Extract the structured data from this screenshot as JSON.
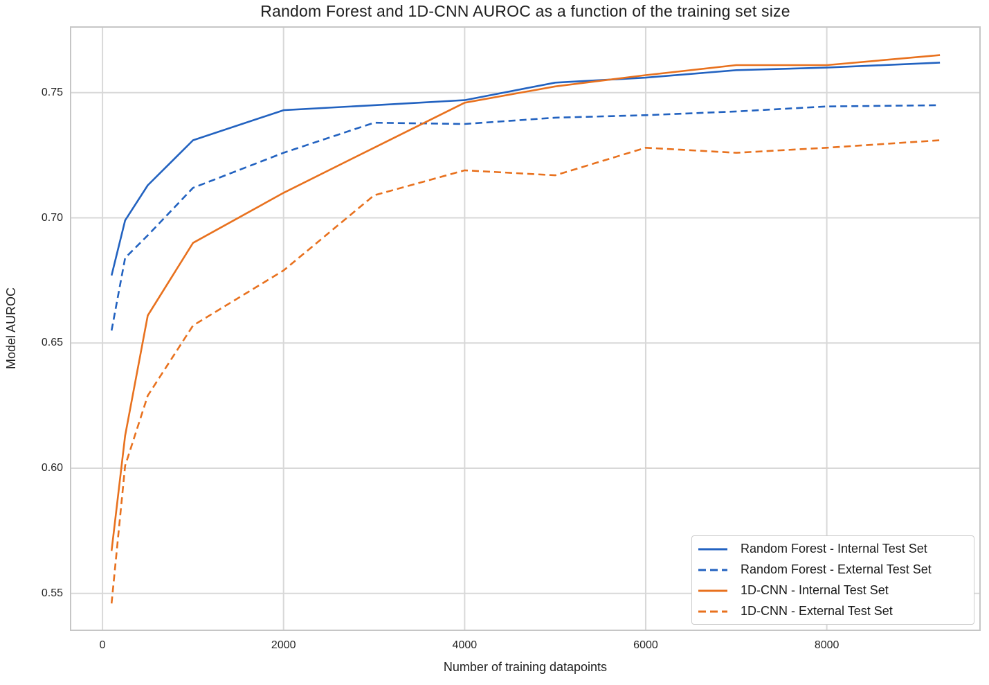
{
  "chart_data": {
    "type": "line",
    "title": "Random Forest and 1D-CNN AUROC as a function of the training set size",
    "xlabel": "Number of training datapoints",
    "ylabel": "Model AUROC",
    "x": [
      100,
      250,
      500,
      1000,
      2000,
      3000,
      4000,
      5000,
      6000,
      7000,
      8000,
      9250
    ],
    "series": [
      {
        "name": "Random Forest - Internal Test Set",
        "color": "#2262c0",
        "style": "solid",
        "values": [
          0.677,
          0.699,
          0.713,
          0.731,
          0.743,
          0.745,
          0.747,
          0.754,
          0.756,
          0.759,
          0.76,
          0.762
        ]
      },
      {
        "name": "Random Forest - External Test Set",
        "color": "#2262c0",
        "style": "dashed",
        "values": [
          0.655,
          0.684,
          0.693,
          0.712,
          0.726,
          0.738,
          0.7375,
          0.74,
          0.741,
          0.7425,
          0.7445,
          0.745
        ]
      },
      {
        "name": "1D-CNN - Internal Test Set",
        "color": "#e8711e",
        "style": "solid",
        "values": [
          0.567,
          0.613,
          0.661,
          0.69,
          0.71,
          0.728,
          0.746,
          0.7525,
          0.757,
          0.761,
          0.761,
          0.765
        ]
      },
      {
        "name": "1D-CNN - External Test Set",
        "color": "#e8711e",
        "style": "dashed",
        "values": [
          0.546,
          0.601,
          0.629,
          0.657,
          0.679,
          0.709,
          0.719,
          0.717,
          0.728,
          0.726,
          0.728,
          0.731
        ]
      }
    ],
    "xlim": [
      -360,
      9700
    ],
    "ylim": [
      0.535,
      0.7765
    ],
    "xticks": [
      0,
      2000,
      4000,
      6000,
      8000
    ],
    "xtick_labels": [
      "0",
      "2000",
      "4000",
      "6000",
      "8000"
    ],
    "yticks": [
      0.55,
      0.6,
      0.65,
      0.7,
      0.75
    ],
    "ytick_labels": [
      "0.55",
      "0.60",
      "0.65",
      "0.70",
      "0.75"
    ],
    "grid": true,
    "legend_position": "lower right",
    "colors": {
      "grid": "#d8d8d8",
      "border": "#c6c6c6",
      "background": "#ffffff",
      "text": "#1f1f1f",
      "tick_text": "#262626"
    }
  }
}
